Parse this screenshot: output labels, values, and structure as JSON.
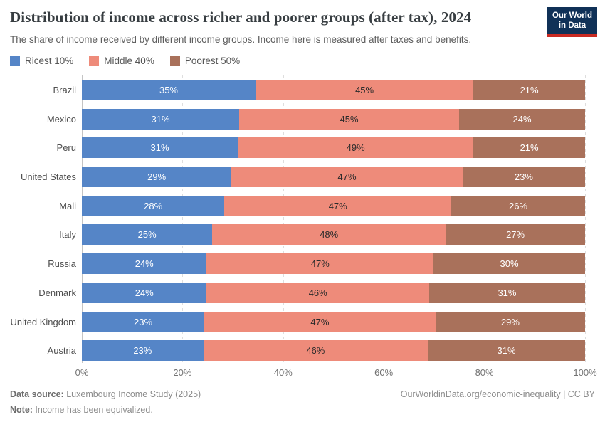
{
  "header": {
    "title": "Distribution of income across richer and poorer groups (after tax), 2024",
    "subtitle": "The share of income received by different income groups. Income here is measured after taxes and benefits.",
    "logo": {
      "line1": "Our World",
      "line2": "in Data"
    }
  },
  "colors": {
    "richest_blue": "#5585c7",
    "middle_salmon": "#ee8b7a",
    "poorest_brown": "#a9715b",
    "logo_bg": "#103157",
    "logo_stripe": "#c92a22"
  },
  "chart_data": {
    "type": "bar",
    "stacked": true,
    "orientation": "horizontal",
    "title": "Distribution of income across richer and poorer groups (after tax), 2024",
    "categories": [
      "Brazil",
      "Mexico",
      "Peru",
      "United States",
      "Mali",
      "Italy",
      "Russia",
      "Denmark",
      "United Kingdom",
      "Austria"
    ],
    "series": [
      {
        "name": "Ricest 10%",
        "color": "#5585c7",
        "label_color": "#ffffff",
        "values": [
          35,
          31,
          31,
          29,
          28,
          25,
          24,
          24,
          23,
          23
        ]
      },
      {
        "name": "Middle 40%",
        "color": "#ee8b7a",
        "label_color": "#2b2b2b",
        "values": [
          45,
          45,
          49,
          47,
          47,
          48,
          47,
          46,
          47,
          46
        ]
      },
      {
        "name": "Poorest 50%",
        "color": "#a9715b",
        "label_color": "#ffffff",
        "values": [
          21,
          24,
          21,
          23,
          26,
          27,
          30,
          31,
          29,
          31
        ]
      }
    ],
    "value_suffix": "%",
    "xlim": [
      0,
      100
    ],
    "x_ticks": [
      0,
      20,
      40,
      60,
      80,
      100
    ],
    "x_tick_suffix": "%",
    "grid": true,
    "legend_position": "top-left"
  },
  "footer": {
    "source_label": "Data source:",
    "source_text": " Luxembourg Income Study (2025)",
    "note_label": "Note:",
    "note_text": " Income has been equivalized.",
    "right_text": "OurWorldinData.org/economic-inequality | CC BY"
  }
}
